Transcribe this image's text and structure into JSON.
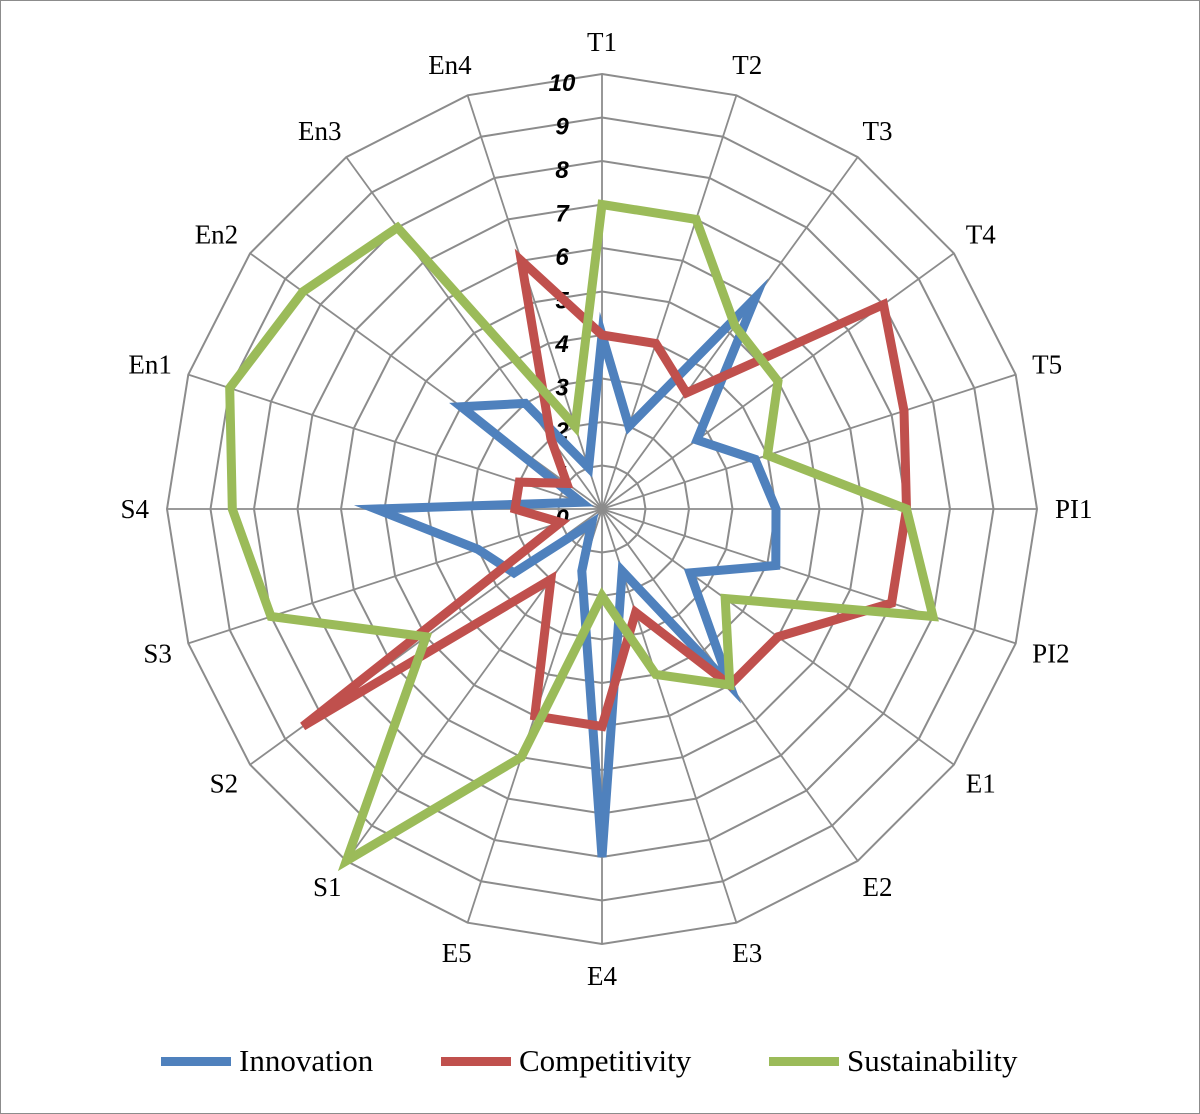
{
  "chart_data": {
    "type": "radar",
    "categories": [
      "T1",
      "T2",
      "T3",
      "T4",
      "T5",
      "PI1",
      "PI2",
      "E1",
      "E2",
      "E3",
      "E4",
      "E5",
      "S1",
      "S2",
      "S3",
      "S4",
      "En1",
      "En2",
      "En3",
      "En4"
    ],
    "r_ticks": [
      "0",
      "1",
      "2",
      "3",
      "4",
      "5",
      "6",
      "7",
      "8",
      "9",
      "10"
    ],
    "rlim": [
      0,
      10
    ],
    "grid": true,
    "legend_position": "bottom",
    "series": [
      {
        "name": "Innovation",
        "color": "#4f81bd",
        "values": [
          4.0,
          2.0,
          6.0,
          2.7,
          3.7,
          4.0,
          4.2,
          2.5,
          5.0,
          1.5,
          8.0,
          1.5,
          0.4,
          2.5,
          3.0,
          5.2,
          0.5,
          4.0,
          3.0,
          1.0
        ]
      },
      {
        "name": "Competitivity",
        "color": "#c0504d",
        "values": [
          4.0,
          4.0,
          3.3,
          8.0,
          7.3,
          7.0,
          7.0,
          5.0,
          5.0,
          2.5,
          5.0,
          5.0,
          2.0,
          8.5,
          1.0,
          2.0,
          2.0,
          1.0,
          2.0,
          6.0
        ]
      },
      {
        "name": "Sustainability",
        "color": "#9bbb59",
        "values": [
          7.0,
          7.0,
          5.2,
          5.0,
          4.0,
          7.0,
          8.0,
          3.5,
          5.0,
          4.0,
          2.0,
          6.0,
          10.0,
          5.0,
          8.0,
          8.5,
          9.0,
          8.5,
          8.0,
          2.0
        ]
      }
    ],
    "title": "",
    "xlabel": "",
    "ylabel": ""
  }
}
